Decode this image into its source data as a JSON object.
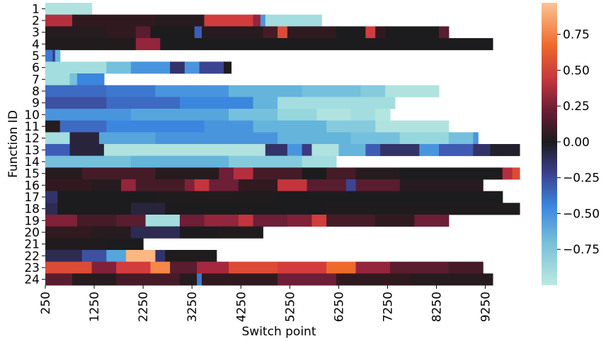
{
  "chart_data": {
    "type": "heatmap",
    "title": "",
    "xlabel": "Switch point",
    "ylabel": "Function ID",
    "x_ticks": [
      250,
      1250,
      2250,
      3250,
      4250,
      5250,
      6250,
      7250,
      8250,
      9250
    ],
    "x_range": [
      250,
      9850
    ],
    "function_ids": [
      "1",
      "2",
      "3",
      "4",
      "5",
      "6",
      "7",
      "8",
      "9",
      "10",
      "11",
      "12",
      "13",
      "14",
      "15",
      "16",
      "17",
      "18",
      "19",
      "20",
      "21",
      "22",
      "23",
      "24"
    ],
    "colorbar": {
      "min": -1.0,
      "max": 0.97,
      "ticks": [
        "0.75",
        "0.50",
        "0.25",
        "0.00",
        "−0.25",
        "−0.50",
        "−0.75"
      ],
      "tick_values": [
        0.75,
        0.5,
        0.25,
        0.0,
        -0.25,
        -0.5,
        -0.75
      ],
      "colormap": "icefire"
    },
    "rows": [
      {
        "id": "1",
        "max_switch": 1200,
        "segments": [
          [
            250,
            -0.95
          ]
        ]
      },
      {
        "id": "2",
        "max_switch": 5900,
        "segments": [
          [
            250,
            0.45
          ],
          [
            800,
            0.1
          ],
          [
            2500,
            0.05
          ],
          [
            3500,
            0.55
          ],
          [
            4500,
            0.35
          ],
          [
            4650,
            -0.6
          ],
          [
            4750,
            -0.9
          ]
        ]
      },
      {
        "id": "3",
        "max_switch": 8500,
        "segments": [
          [
            250,
            0.05
          ],
          [
            1500,
            0.1
          ],
          [
            2100,
            0.2
          ],
          [
            2400,
            0.0
          ],
          [
            3300,
            -0.4
          ],
          [
            3450,
            0.05
          ],
          [
            4700,
            0.15
          ],
          [
            5000,
            0.6
          ],
          [
            5200,
            0.1
          ],
          [
            6200,
            0.0
          ],
          [
            6800,
            0.55
          ],
          [
            7000,
            0.1
          ],
          [
            7200,
            0.0
          ],
          [
            8300,
            0.2
          ]
        ]
      },
      {
        "id": "4",
        "max_switch": 9400,
        "segments": [
          [
            250,
            0.02
          ],
          [
            2100,
            0.35
          ],
          [
            2600,
            0.0
          ]
        ]
      },
      {
        "id": "5",
        "max_switch": 550,
        "segments": [
          [
            250,
            -0.5
          ],
          [
            400,
            -0.25
          ],
          [
            450,
            -0.7
          ]
        ]
      },
      {
        "id": "6",
        "max_switch": 4050,
        "segments": [
          [
            250,
            -0.9
          ],
          [
            1500,
            -0.75
          ],
          [
            2000,
            -0.6
          ],
          [
            2800,
            -0.2
          ],
          [
            3100,
            -0.6
          ],
          [
            3400,
            -0.3
          ],
          [
            3900,
            0.02
          ]
        ]
      },
      {
        "id": "7",
        "max_switch": 1450,
        "segments": [
          [
            250,
            -0.9
          ],
          [
            750,
            -0.75
          ],
          [
            900,
            -0.55
          ]
        ]
      },
      {
        "id": "8",
        "max_switch": 8300,
        "segments": [
          [
            250,
            -0.45
          ],
          [
            1500,
            -0.5
          ],
          [
            2500,
            -0.6
          ],
          [
            4000,
            -0.7
          ],
          [
            5500,
            -0.75
          ],
          [
            6700,
            -0.8
          ],
          [
            7200,
            -0.95
          ]
        ]
      },
      {
        "id": "9",
        "max_switch": 7400,
        "segments": [
          [
            250,
            -0.35
          ],
          [
            1500,
            -0.45
          ],
          [
            3000,
            -0.55
          ],
          [
            4500,
            -0.7
          ],
          [
            5000,
            -0.9
          ]
        ]
      },
      {
        "id": "10",
        "max_switch": 7300,
        "segments": [
          [
            250,
            -0.6
          ],
          [
            2000,
            -0.65
          ],
          [
            4000,
            -0.75
          ],
          [
            5000,
            -0.85
          ],
          [
            5800,
            -0.95
          ],
          [
            6500,
            -0.9
          ],
          [
            7000,
            -0.97
          ]
        ]
      },
      {
        "id": "11",
        "max_switch": 8500,
        "segments": [
          [
            250,
            0.05
          ],
          [
            550,
            -0.45
          ],
          [
            1500,
            -0.55
          ],
          [
            3500,
            -0.6
          ],
          [
            4500,
            -0.7
          ],
          [
            6000,
            -0.8
          ],
          [
            7000,
            -0.95
          ]
        ]
      },
      {
        "id": "12",
        "max_switch": 9100,
        "segments": [
          [
            250,
            -0.9
          ],
          [
            750,
            -0.1
          ],
          [
            1350,
            -0.65
          ],
          [
            2500,
            -0.6
          ],
          [
            5000,
            -0.7
          ],
          [
            6500,
            -0.75
          ],
          [
            7500,
            -0.85
          ],
          [
            8500,
            -0.75
          ],
          [
            9000,
            -0.6
          ]
        ]
      },
      {
        "id": "13",
        "max_switch": 9950,
        "segments": [
          [
            250,
            -0.4
          ],
          [
            750,
            -0.1
          ],
          [
            1450,
            -0.95
          ],
          [
            4750,
            -0.2
          ],
          [
            5200,
            -0.6
          ],
          [
            5500,
            -0.25
          ],
          [
            5700,
            -0.95
          ],
          [
            6250,
            -0.7
          ],
          [
            6800,
            -0.4
          ],
          [
            7100,
            -0.2
          ],
          [
            7900,
            -0.6
          ],
          [
            8300,
            -0.4
          ],
          [
            9000,
            -0.2
          ],
          [
            9350,
            -0.05
          ]
        ]
      },
      {
        "id": "14",
        "max_switch": 6200,
        "segments": [
          [
            250,
            -0.75
          ],
          [
            2000,
            -0.7
          ],
          [
            4000,
            -0.8
          ],
          [
            5500,
            -0.9
          ]
        ]
      },
      {
        "id": "15",
        "max_switch": 9950,
        "segments": [
          [
            250,
            0.05
          ],
          [
            1000,
            0.15
          ],
          [
            2500,
            0.05
          ],
          [
            3800,
            0.25
          ],
          [
            4100,
            0.45
          ],
          [
            4500,
            0.15
          ],
          [
            5500,
            0.0
          ],
          [
            6000,
            0.15
          ],
          [
            6600,
            0.05
          ],
          [
            7500,
            0.0
          ],
          [
            9600,
            0.45
          ],
          [
            9800,
            0.6
          ]
        ]
      },
      {
        "id": "16",
        "max_switch": 9200,
        "segments": [
          [
            250,
            0.1
          ],
          [
            1200,
            0.05
          ],
          [
            1800,
            0.35
          ],
          [
            2100,
            0.15
          ],
          [
            3100,
            0.3
          ],
          [
            3300,
            0.5
          ],
          [
            3600,
            0.25
          ],
          [
            4200,
            0.1
          ],
          [
            5000,
            0.5
          ],
          [
            5600,
            0.2
          ],
          [
            6400,
            -0.3
          ],
          [
            6600,
            0.2
          ],
          [
            7500,
            0.05
          ]
        ]
      },
      {
        "id": "17",
        "max_switch": 9600,
        "segments": [
          [
            250,
            -0.2
          ],
          [
            500,
            0.0
          ],
          [
            2500,
            0.02
          ],
          [
            5000,
            0.0
          ]
        ]
      },
      {
        "id": "18",
        "max_switch": 9950,
        "segments": [
          [
            250,
            -0.15
          ],
          [
            500,
            0.0
          ],
          [
            2000,
            -0.1
          ],
          [
            2700,
            0.0
          ],
          [
            6000,
            0.02
          ]
        ]
      },
      {
        "id": "19",
        "max_switch": 8500,
        "segments": [
          [
            250,
            0.3
          ],
          [
            900,
            0.15
          ],
          [
            1700,
            0.2
          ],
          [
            2300,
            -0.9
          ],
          [
            3000,
            0.25
          ],
          [
            3500,
            0.35
          ],
          [
            4200,
            0.5
          ],
          [
            4500,
            0.25
          ],
          [
            5200,
            0.3
          ],
          [
            5700,
            0.55
          ],
          [
            6000,
            0.15
          ],
          [
            7000,
            0.1
          ],
          [
            7800,
            0.25
          ]
        ]
      },
      {
        "id": "20",
        "max_switch": 4700,
        "segments": [
          [
            250,
            0.1
          ],
          [
            1200,
            0.05
          ],
          [
            2000,
            -0.15
          ],
          [
            3000,
            0.0
          ],
          [
            3800,
            0.02
          ]
        ]
      },
      {
        "id": "21",
        "max_switch": 2250,
        "segments": [
          [
            250,
            0.02
          ],
          [
            1500,
            0.0
          ]
        ]
      },
      {
        "id": "22",
        "max_switch": 3750,
        "segments": [
          [
            250,
            -0.15
          ],
          [
            1000,
            -0.35
          ],
          [
            1500,
            -0.65
          ],
          [
            1900,
            0.95
          ],
          [
            2500,
            -0.2
          ],
          [
            2700,
            0.02
          ]
        ]
      },
      {
        "id": "23",
        "max_switch": 9200,
        "segments": [
          [
            250,
            0.6
          ],
          [
            1200,
            0.3
          ],
          [
            1700,
            0.55
          ],
          [
            2400,
            0.8
          ],
          [
            2800,
            0.2
          ],
          [
            3350,
            0.4
          ],
          [
            4000,
            0.6
          ],
          [
            5000,
            0.55
          ],
          [
            6000,
            0.7
          ],
          [
            6600,
            0.35
          ],
          [
            7300,
            0.2
          ],
          [
            8500,
            0.15
          ]
        ]
      },
      {
        "id": "24",
        "max_switch": 9400,
        "segments": [
          [
            250,
            0.2
          ],
          [
            800,
            0.05
          ],
          [
            1700,
            0.15
          ],
          [
            3000,
            0.05
          ],
          [
            3350,
            -0.5
          ],
          [
            3450,
            0.1
          ],
          [
            5000,
            0.25
          ],
          [
            6200,
            0.1
          ],
          [
            7700,
            0.05
          ]
        ]
      }
    ]
  }
}
